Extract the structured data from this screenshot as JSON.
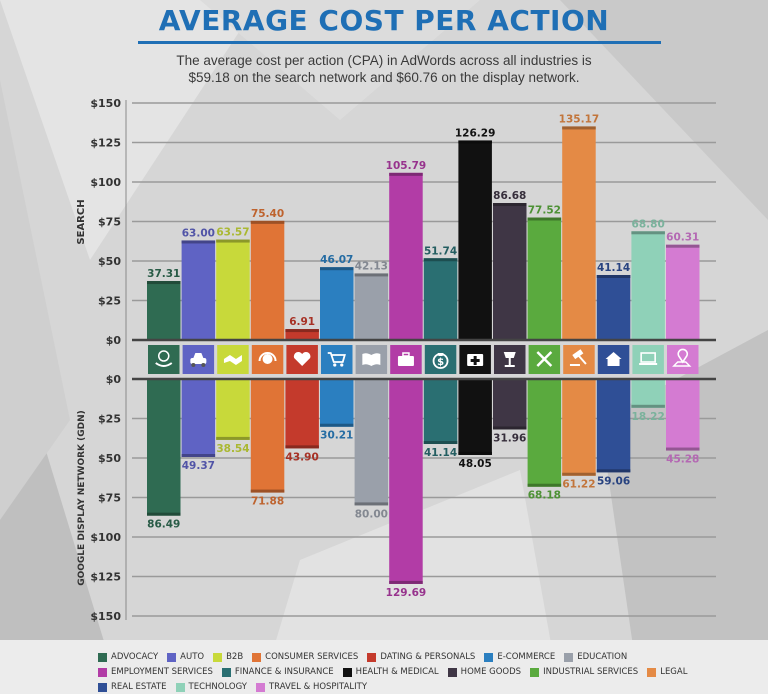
{
  "header": {
    "title": "AVERAGE COST PER ACTION",
    "subtitle": "The average cost per action (CPA) in AdWords across all industries is $59.18 on the search network and $60.76 on the display network."
  },
  "chart_data": {
    "type": "bar",
    "title": "AVERAGE COST PER ACTION",
    "categories": [
      "ADVOCACY",
      "AUTO",
      "B2B",
      "CONSUMER SERVICES",
      "DATING & PERSONALS",
      "E-COMMERCE",
      "EDUCATION",
      "EMPLOYMENT SERVICES",
      "FINANCE & INSURANCE",
      "HEALTH & MEDICAL",
      "HOME GOODS",
      "INDUSTRIAL SERVICES",
      "LEGAL",
      "REAL ESTATE",
      "TECHNOLOGY",
      "TRAVEL & HOSPITALITY"
    ],
    "colors": [
      "#2f6b52",
      "#5f63c4",
      "#c8d93a",
      "#e07436",
      "#c43a2c",
      "#2b7fc0",
      "#9aa0aa",
      "#b23ca6",
      "#2a6f72",
      "#111111",
      "#3f3645",
      "#5aaa3e",
      "#e48a45",
      "#2f4f96",
      "#8fd1b8",
      "#d47bd2"
    ],
    "icons": [
      "hand-globe-icon",
      "car-icon",
      "handshake-icon",
      "headset-icon",
      "heart-icon",
      "cart-icon",
      "book-icon",
      "briefcase-icon",
      "money-bag-icon",
      "medical-kit-icon",
      "lamp-icon",
      "tools-icon",
      "gavel-icon",
      "house-icon",
      "laptop-icon",
      "map-pin-icon"
    ],
    "series": [
      {
        "name": "SEARCH",
        "values": [
          37.31,
          63.0,
          63.57,
          75.4,
          6.91,
          46.07,
          42.13,
          105.79,
          51.74,
          126.29,
          86.68,
          77.52,
          135.17,
          41.14,
          68.8,
          60.31
        ]
      },
      {
        "name": "GOOGLE DISPLAY NETWORK (GDN)",
        "values": [
          86.49,
          49.37,
          38.54,
          71.88,
          43.9,
          30.21,
          80.0,
          129.69,
          41.14,
          48.05,
          31.96,
          68.18,
          61.22,
          59.06,
          18.22,
          45.28
        ]
      }
    ],
    "search_labels": [
      "37.31",
      "63.00",
      "63.57",
      "75.40",
      "6.91",
      "46.07",
      "42.13",
      "105.79",
      "51.74",
      "126.29",
      "86.68",
      "77.52",
      "135.17",
      "41.14",
      "68.80",
      "60.31"
    ],
    "display_labels": [
      "86.49",
      "49.37",
      "38.54",
      "71.88",
      "43.90",
      "30.21",
      "80.00",
      "129.69",
      "41.14",
      "48.05",
      "31.96",
      "68.18",
      "61.22",
      "59.06",
      "18.22",
      "45.28"
    ],
    "search_ticks": [
      "$150",
      "$125",
      "$100",
      "$75",
      "$50",
      "$25",
      "$0"
    ],
    "display_ticks": [
      "$0",
      "$25",
      "$50",
      "$75",
      "$100",
      "$125",
      "$150"
    ],
    "ylim": [
      0,
      150
    ],
    "legend_position": "bottom"
  }
}
